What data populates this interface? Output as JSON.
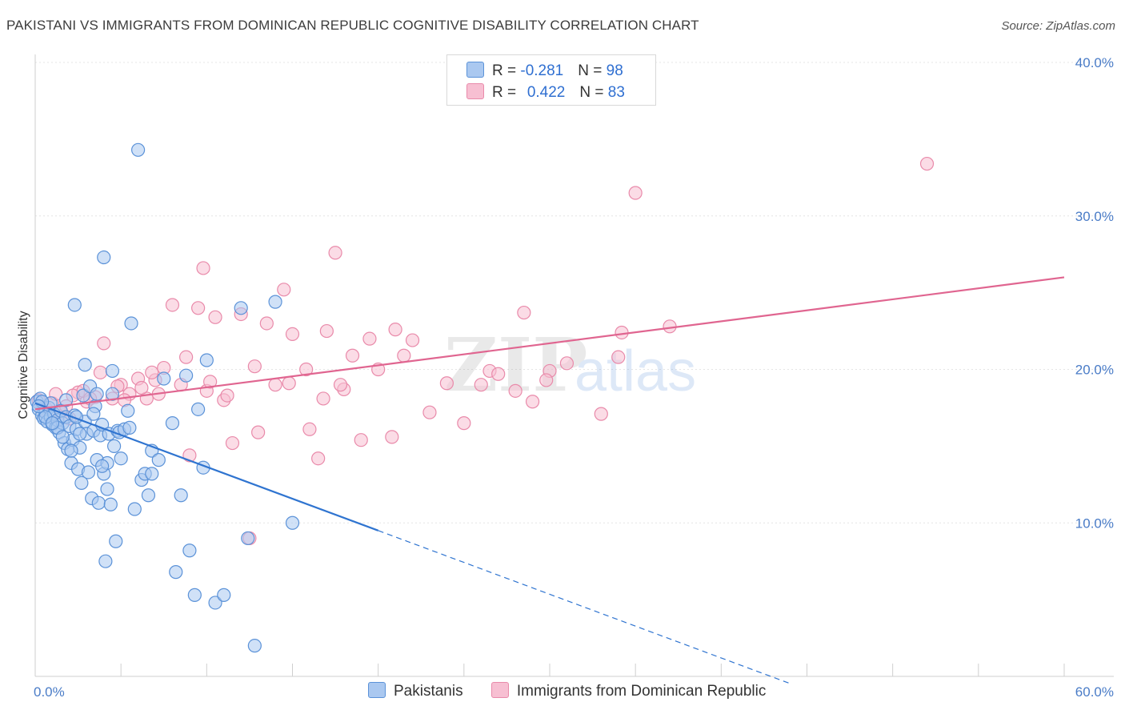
{
  "title": "PAKISTANI VS IMMIGRANTS FROM DOMINICAN REPUBLIC COGNITIVE DISABILITY CORRELATION CHART",
  "source": "Source: ZipAtlas.com",
  "watermark": {
    "zip": "ZIP",
    "atlas": "atlas"
  },
  "legend": {
    "rows": [
      {
        "r_label": "R = ",
        "r_value": "-0.281",
        "n_label": "N = ",
        "n_value": "98"
      },
      {
        "r_label": "R = ",
        "r_value": "0.422",
        "n_label": "N = ",
        "n_value": "83"
      }
    ]
  },
  "bottom_legend": [
    "Pakistanis",
    "Immigrants from Dominican Republic"
  ],
  "colors": {
    "blue_fill": "#aac8f0",
    "blue_stroke": "#5b92d8",
    "blue_line": "#2f74d0",
    "pink_fill": "#f7bfd2",
    "pink_stroke": "#e98aaa",
    "pink_line": "#e06590",
    "tick": "#4a7cc7"
  },
  "chart_data": {
    "type": "scatter",
    "title": "PAKISTANI VS IMMIGRANTS FROM DOMINICAN REPUBLIC COGNITIVE DISABILITY CORRELATION CHART",
    "xlabel": "",
    "ylabel": "Cognitive Disability",
    "xlim": [
      0,
      60
    ],
    "ylim": [
      0,
      40
    ],
    "x_tick_labels": [
      {
        "value": 0,
        "label": "0.0%"
      },
      {
        "value": 60,
        "label": "60.0%"
      }
    ],
    "y_tick_labels": [
      {
        "value": 10,
        "label": "10.0%"
      },
      {
        "value": 20,
        "label": "20.0%"
      },
      {
        "value": 30,
        "label": "30.0%"
      },
      {
        "value": 40,
        "label": "40.0%"
      }
    ],
    "series": [
      {
        "name": "Pakistanis",
        "color": "#5b92d8",
        "trend": {
          "x": [
            0,
            20
          ],
          "y": [
            17.8,
            9.5
          ],
          "dashed_extension_to_x": 44
        },
        "points": [
          [
            0.1,
            17.9
          ],
          [
            0.2,
            17.4
          ],
          [
            0.3,
            18.1
          ],
          [
            0.4,
            17.0
          ],
          [
            0.5,
            16.8
          ],
          [
            0.6,
            17.2
          ],
          [
            0.7,
            16.6
          ],
          [
            0.8,
            17.5
          ],
          [
            0.9,
            16.9
          ],
          [
            1.0,
            16.4
          ],
          [
            1.1,
            17.1
          ],
          [
            1.2,
            16.2
          ],
          [
            1.3,
            16.7
          ],
          [
            1.4,
            15.9
          ],
          [
            1.5,
            17.3
          ],
          [
            1.6,
            16.5
          ],
          [
            1.7,
            15.2
          ],
          [
            1.8,
            16.9
          ],
          [
            1.9,
            14.8
          ],
          [
            2.0,
            16.3
          ],
          [
            2.1,
            13.9
          ],
          [
            2.2,
            15.4
          ],
          [
            2.3,
            17.0
          ],
          [
            2.4,
            16.1
          ],
          [
            2.5,
            13.5
          ],
          [
            2.6,
            14.9
          ],
          [
            2.7,
            12.6
          ],
          [
            2.8,
            18.3
          ],
          [
            2.9,
            16.6
          ],
          [
            3.0,
            15.8
          ],
          [
            3.1,
            13.3
          ],
          [
            3.2,
            18.9
          ],
          [
            3.3,
            11.6
          ],
          [
            3.4,
            16.0
          ],
          [
            3.5,
            17.6
          ],
          [
            3.6,
            14.1
          ],
          [
            3.7,
            11.3
          ],
          [
            3.8,
            15.7
          ],
          [
            3.9,
            16.4
          ],
          [
            4.0,
            13.2
          ],
          [
            4.1,
            7.5
          ],
          [
            4.2,
            13.9
          ],
          [
            4.3,
            15.8
          ],
          [
            4.4,
            11.2
          ],
          [
            4.5,
            18.4
          ],
          [
            4.6,
            15.0
          ],
          [
            4.7,
            8.8
          ],
          [
            4.8,
            16.0
          ],
          [
            4.9,
            15.9
          ],
          [
            5.0,
            14.2
          ],
          [
            5.2,
            16.1
          ],
          [
            5.4,
            17.3
          ],
          [
            5.6,
            23.0
          ],
          [
            5.8,
            10.9
          ],
          [
            6.0,
            34.3
          ],
          [
            6.2,
            12.8
          ],
          [
            6.4,
            13.2
          ],
          [
            6.6,
            11.8
          ],
          [
            6.8,
            14.7
          ],
          [
            7.2,
            14.1
          ],
          [
            7.5,
            19.4
          ],
          [
            8.0,
            16.5
          ],
          [
            8.2,
            6.8
          ],
          [
            8.5,
            11.8
          ],
          [
            8.8,
            19.6
          ],
          [
            9.0,
            8.2
          ],
          [
            9.3,
            5.3
          ],
          [
            9.5,
            17.4
          ],
          [
            9.8,
            13.6
          ],
          [
            10.0,
            20.6
          ],
          [
            10.5,
            4.8
          ],
          [
            11.0,
            5.3
          ],
          [
            12.0,
            24.0
          ],
          [
            12.4,
            9.0
          ],
          [
            12.8,
            2.0
          ],
          [
            14.0,
            24.4
          ],
          [
            15.0,
            10.0
          ],
          [
            2.3,
            24.2
          ],
          [
            4.0,
            27.3
          ],
          [
            6.8,
            13.2
          ],
          [
            1.8,
            18.0
          ],
          [
            2.9,
            20.3
          ],
          [
            3.6,
            18.4
          ],
          [
            4.5,
            19.9
          ],
          [
            5.5,
            16.2
          ],
          [
            0.6,
            16.9
          ],
          [
            1.3,
            16.2
          ],
          [
            2.1,
            14.7
          ],
          [
            3.4,
            17.1
          ],
          [
            0.9,
            17.8
          ],
          [
            1.6,
            15.6
          ],
          [
            2.6,
            15.8
          ],
          [
            3.9,
            13.7
          ],
          [
            0.4,
            17.9
          ],
          [
            1.0,
            16.5
          ],
          [
            2.4,
            16.9
          ],
          [
            4.2,
            12.2
          ],
          [
            0.2,
            17.6
          ]
        ]
      },
      {
        "name": "Immigrants from Dominican Republic",
        "color": "#e98aaa",
        "trend": {
          "x": [
            0,
            60
          ],
          "y": [
            17.4,
            26.0
          ]
        },
        "points": [
          [
            0.2,
            18.0
          ],
          [
            0.6,
            17.5
          ],
          [
            1.0,
            17.8
          ],
          [
            1.5,
            17.2
          ],
          [
            2.0,
            16.8
          ],
          [
            2.5,
            18.5
          ],
          [
            3.0,
            17.9
          ],
          [
            3.5,
            18.2
          ],
          [
            4.0,
            21.7
          ],
          [
            4.5,
            18.1
          ],
          [
            5.0,
            19.0
          ],
          [
            5.5,
            18.4
          ],
          [
            6.0,
            19.4
          ],
          [
            6.5,
            18.1
          ],
          [
            7.0,
            19.3
          ],
          [
            7.5,
            20.1
          ],
          [
            8.0,
            24.2
          ],
          [
            8.5,
            19.0
          ],
          [
            9.0,
            14.4
          ],
          [
            9.5,
            24.0
          ],
          [
            10.0,
            18.6
          ],
          [
            10.5,
            23.4
          ],
          [
            11.0,
            18.0
          ],
          [
            11.5,
            15.2
          ],
          [
            12.0,
            23.6
          ],
          [
            12.5,
            9.0
          ],
          [
            13.0,
            15.9
          ],
          [
            13.5,
            23.0
          ],
          [
            14.0,
            19.0
          ],
          [
            14.5,
            25.2
          ],
          [
            15.0,
            22.3
          ],
          [
            16.0,
            16.1
          ],
          [
            16.5,
            14.2
          ],
          [
            17.0,
            22.5
          ],
          [
            17.5,
            27.6
          ],
          [
            18.0,
            18.7
          ],
          [
            18.5,
            20.9
          ],
          [
            19.0,
            15.4
          ],
          [
            19.5,
            22.0
          ],
          [
            20.0,
            20.0
          ],
          [
            21.0,
            22.6
          ],
          [
            21.5,
            20.9
          ],
          [
            22.0,
            21.9
          ],
          [
            23.0,
            17.2
          ],
          [
            24.0,
            19.1
          ],
          [
            25.0,
            16.5
          ],
          [
            26.0,
            19.0
          ],
          [
            26.5,
            19.9
          ],
          [
            27.0,
            19.7
          ],
          [
            28.0,
            18.6
          ],
          [
            28.5,
            23.7
          ],
          [
            29.0,
            17.9
          ],
          [
            30.0,
            19.9
          ],
          [
            31.0,
            20.4
          ],
          [
            33.0,
            17.1
          ],
          [
            34.0,
            20.8
          ],
          [
            34.2,
            22.4
          ],
          [
            35.0,
            31.5
          ],
          [
            37.0,
            22.8
          ],
          [
            52.0,
            33.4
          ],
          [
            1.2,
            18.4
          ],
          [
            2.8,
            18.6
          ],
          [
            3.8,
            19.8
          ],
          [
            5.2,
            18.0
          ],
          [
            6.8,
            19.8
          ],
          [
            8.8,
            20.8
          ],
          [
            10.2,
            19.2
          ],
          [
            11.2,
            18.3
          ],
          [
            12.8,
            20.2
          ],
          [
            14.8,
            19.1
          ],
          [
            15.8,
            20.0
          ],
          [
            16.8,
            18.1
          ],
          [
            17.8,
            19.0
          ],
          [
            0.8,
            17.0
          ],
          [
            1.8,
            17.6
          ],
          [
            2.2,
            18.3
          ],
          [
            3.2,
            18.1
          ],
          [
            4.8,
            18.9
          ],
          [
            6.2,
            18.8
          ],
          [
            7.2,
            18.4
          ],
          [
            9.8,
            26.6
          ],
          [
            20.8,
            15.6
          ],
          [
            29.8,
            19.3
          ]
        ]
      }
    ]
  }
}
